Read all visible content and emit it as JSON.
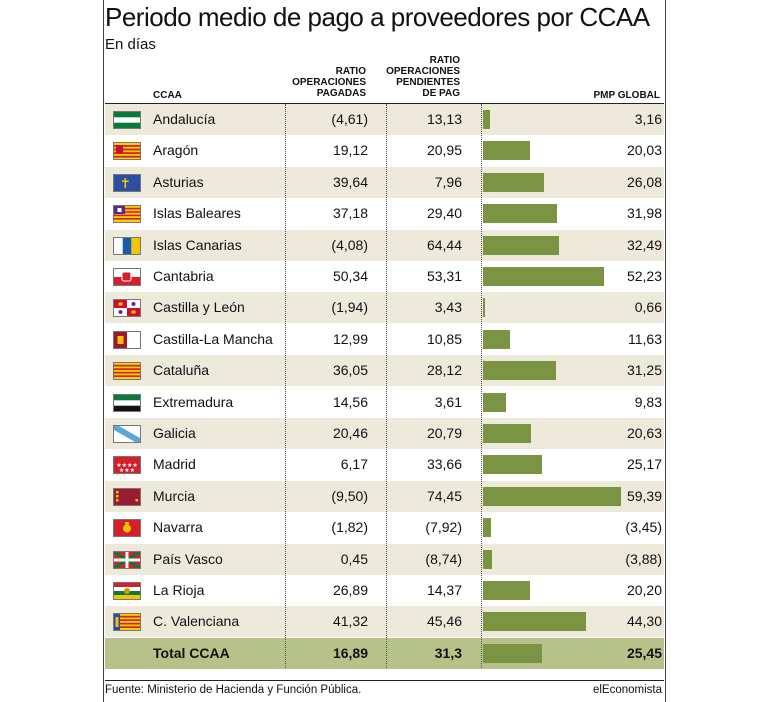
{
  "title": "Periodo medio de pago a proveedores por CCAA",
  "subtitle": "En días",
  "headers": {
    "ccaa": "CCAA",
    "paid": [
      "RATIO",
      "OPERACIONES",
      "PAGADAS"
    ],
    "pending": [
      "RATIO",
      "OPERACIONES",
      "PENDIENTES",
      "DE PAG"
    ],
    "pmp": "PMP GLOBAL"
  },
  "footer": {
    "source": "Fuente: Ministerio de Hacienda y Función Pública.",
    "brand": "elEconomista"
  },
  "colors": {
    "bar": "#7a9444",
    "shade": "#eeeadb",
    "total": "#b7c28a"
  },
  "chart_data": {
    "type": "table",
    "title": "Periodo medio de pago a proveedores por CCAA",
    "subtitle": "En días",
    "columns": [
      "CCAA",
      "RATIO OPERACIONES PAGADAS",
      "RATIO OPERACIONES PENDIENTES DE PAG",
      "PMP GLOBAL"
    ],
    "bar_column": "PMP GLOBAL",
    "bar_max": 59.39,
    "rows": [
      {
        "ccaa": "Andalucía",
        "flag": "andalucia-flag-icon",
        "paid": "(4,61)",
        "pending": "13,13",
        "pmp": "3,16",
        "pmp_value": 3.16
      },
      {
        "ccaa": "Aragón",
        "flag": "aragon-flag-icon",
        "paid": "19,12",
        "pending": "20,95",
        "pmp": "20,03",
        "pmp_value": 20.03
      },
      {
        "ccaa": "Asturias",
        "flag": "asturias-flag-icon",
        "paid": "39,64",
        "pending": "7,96",
        "pmp": "26,08",
        "pmp_value": 26.08
      },
      {
        "ccaa": "Islas Baleares",
        "flag": "baleares-flag-icon",
        "paid": "37,18",
        "pending": "29,40",
        "pmp": "31,98",
        "pmp_value": 31.98
      },
      {
        "ccaa": "Islas Canarias",
        "flag": "canarias-flag-icon",
        "paid": "(4,08)",
        "pending": "64,44",
        "pmp": "32,49",
        "pmp_value": 32.49
      },
      {
        "ccaa": "Cantabria",
        "flag": "cantabria-flag-icon",
        "paid": "50,34",
        "pending": "53,31",
        "pmp": "52,23",
        "pmp_value": 52.23
      },
      {
        "ccaa": "Castilla y León",
        "flag": "castilla-leon-flag-icon",
        "paid": "(1,94)",
        "pending": "3,43",
        "pmp": "0,66",
        "pmp_value": 0.66
      },
      {
        "ccaa": "Castilla-La Mancha",
        "flag": "castilla-la-mancha-flag-icon",
        "paid": "12,99",
        "pending": "10,85",
        "pmp": "11,63",
        "pmp_value": 11.63
      },
      {
        "ccaa": "Cataluña",
        "flag": "cataluna-flag-icon",
        "paid": "36,05",
        "pending": "28,12",
        "pmp": "31,25",
        "pmp_value": 31.25
      },
      {
        "ccaa": "Extremadura",
        "flag": "extremadura-flag-icon",
        "paid": "14,56",
        "pending": "3,61",
        "pmp": "9,83",
        "pmp_value": 9.83
      },
      {
        "ccaa": "Galicia",
        "flag": "galicia-flag-icon",
        "paid": "20,46",
        "pending": "20,79",
        "pmp": "20,63",
        "pmp_value": 20.63
      },
      {
        "ccaa": "Madrid",
        "flag": "madrid-flag-icon",
        "paid": "6,17",
        "pending": "33,66",
        "pmp": "25,17",
        "pmp_value": 25.17
      },
      {
        "ccaa": "Murcia",
        "flag": "murcia-flag-icon",
        "paid": "(9,50)",
        "pending": "74,45",
        "pmp": "59,39",
        "pmp_value": 59.39
      },
      {
        "ccaa": "Navarra",
        "flag": "navarra-flag-icon",
        "paid": "(1,82)",
        "pending": "(7,92)",
        "pmp": "(3,45)",
        "pmp_value": -3.45
      },
      {
        "ccaa": "País Vasco",
        "flag": "pais-vasco-flag-icon",
        "paid": "0,45",
        "pending": "(8,74)",
        "pmp": "(3,88)",
        "pmp_value": -3.88
      },
      {
        "ccaa": "La Rioja",
        "flag": "la-rioja-flag-icon",
        "paid": "26,89",
        "pending": "14,37",
        "pmp": "20,20",
        "pmp_value": 20.2
      },
      {
        "ccaa": "C. Valenciana",
        "flag": "valenciana-flag-icon",
        "paid": "41,32",
        "pending": "45,46",
        "pmp": "44,30",
        "pmp_value": 44.3
      }
    ],
    "total": {
      "ccaa": "Total CCAA",
      "paid": "16,89",
      "pending": "31,3",
      "pmp": "25,45",
      "pmp_value": 25.45
    }
  }
}
